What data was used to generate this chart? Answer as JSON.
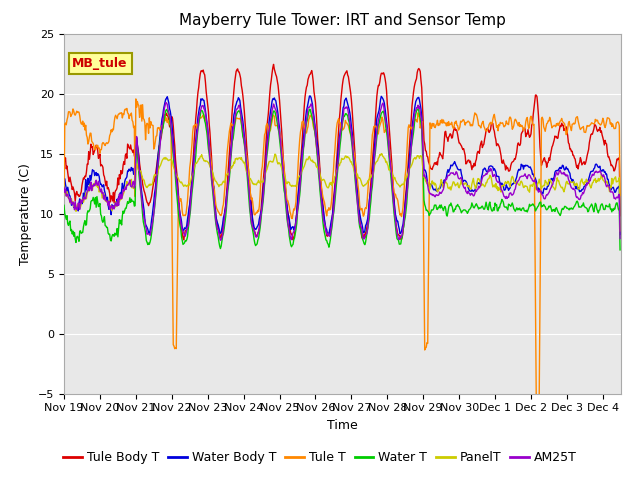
{
  "title": "Mayberry Tule Tower: IRT and Sensor Temp",
  "xlabel": "Time",
  "ylabel": "Temperature (C)",
  "ylim": [
    -5,
    25
  ],
  "xlim_days": [
    0,
    15.5
  ],
  "x_tick_labels": [
    "Nov 19",
    "Nov 20",
    "Nov 21",
    "Nov 22",
    "Nov 23",
    "Nov 24",
    "Nov 25",
    "Nov 26",
    "Nov 27",
    "Nov 28",
    "Nov 29",
    "Nov 30",
    "Dec 1",
    "Dec 2",
    "Dec 3",
    "Dec 4"
  ],
  "x_tick_positions": [
    0,
    1,
    2,
    3,
    4,
    5,
    6,
    7,
    8,
    9,
    10,
    11,
    12,
    13,
    14,
    15
  ],
  "legend_entries": [
    "Tule Body T",
    "Water Body T",
    "Tule T",
    "Water T",
    "PanelT",
    "AM25T"
  ],
  "line_colors": [
    "#dd0000",
    "#0000dd",
    "#ff8800",
    "#00cc00",
    "#cccc00",
    "#9900cc"
  ],
  "bg_color": "#e8e8e8",
  "fig_bg_color": "#ffffff",
  "label_box_text": "MB_tule",
  "label_box_color": "#ffff99",
  "label_box_edge": "#999900",
  "title_fontsize": 11,
  "axis_label_fontsize": 9,
  "tick_label_fontsize": 8,
  "legend_fontsize": 9
}
